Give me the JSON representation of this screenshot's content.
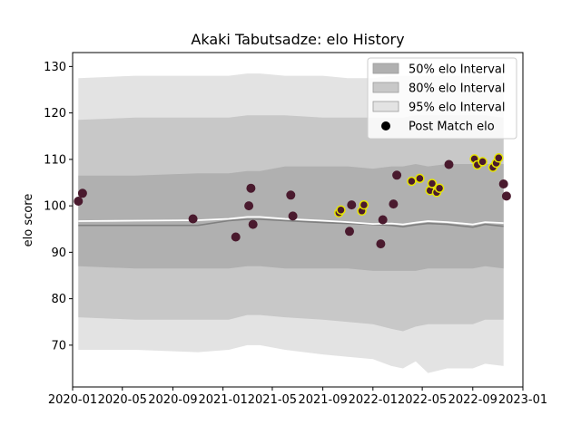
{
  "chart_data": {
    "type": "scatter",
    "title": "Akaki Tabutsadze: elo History",
    "xlabel": "",
    "ylabel": "elo score",
    "xlim": [
      "2020-01-01",
      "2023-01-01"
    ],
    "ylim": [
      61,
      133
    ],
    "x_ticks": [
      "2020-01",
      "2020-05",
      "2020-09",
      "2021-01",
      "2021-05",
      "2021-09",
      "2022-01",
      "2022-05",
      "2022-09",
      "2023-01"
    ],
    "y_ticks": [
      70,
      80,
      90,
      100,
      110,
      120,
      130
    ],
    "grid": false,
    "legend": {
      "placement": "top-right",
      "entries": [
        "50% elo Interval",
        "80% elo Interval",
        "95% elo Interval",
        "Post Match elo"
      ]
    },
    "colors": {
      "band50": "#b0b0b0",
      "band80": "#c8c8c8",
      "band95": "#e3e3e3",
      "mean_line": "#808080",
      "median_line": "#ffffff",
      "point_fill": "#4a1a2e",
      "point_highlight_edge": "#e6e600"
    },
    "bands": {
      "x": [
        "2020-01-15",
        "2020-06-01",
        "2020-11-01",
        "2021-01-15",
        "2021-03-01",
        "2021-04-01",
        "2021-06-01",
        "2021-09-01",
        "2021-11-01",
        "2022-01-01",
        "2022-02-15",
        "2022-03-15",
        "2022-04-15",
        "2022-05-15",
        "2022-07-01",
        "2022-09-01",
        "2022-10-01",
        "2022-11-15"
      ],
      "band95": {
        "low": [
          69,
          69,
          68.5,
          69,
          70,
          70,
          69,
          68,
          67.5,
          67,
          65.5,
          65,
          66.5,
          64,
          65,
          65,
          66,
          65.5
        ],
        "high": [
          127.5,
          128,
          128,
          128,
          128.5,
          128.5,
          128,
          128,
          127.5,
          127.5,
          128,
          128,
          128,
          128,
          128,
          128,
          128,
          128
        ]
      },
      "band80": {
        "low": [
          76,
          75.5,
          75.5,
          75.5,
          76.5,
          76.5,
          76,
          75.5,
          75,
          74.5,
          73.5,
          73,
          74,
          74.5,
          74.5,
          74.5,
          75.5,
          75.5
        ],
        "high": [
          118.5,
          119,
          119,
          119,
          119.5,
          119.5,
          119.5,
          119,
          119,
          119,
          119,
          119,
          119.5,
          119.5,
          119.5,
          119.5,
          119.5,
          119
        ]
      },
      "band50": {
        "low": [
          87,
          86.5,
          86.5,
          86.5,
          87,
          87,
          86.5,
          86.5,
          86.5,
          86,
          86,
          86,
          86,
          86.5,
          86.5,
          86.5,
          87,
          86.5
        ],
        "high": [
          106.5,
          106.5,
          107,
          107,
          107.5,
          107.5,
          108.5,
          108.5,
          108.5,
          108,
          108.5,
          108.5,
          109,
          108.5,
          109,
          109,
          109,
          109
        ]
      },
      "mean": [
        95.8,
        95.8,
        95.8,
        96.8,
        97.1,
        97.1,
        96.8,
        96.4,
        96.2,
        96.0,
        95.8,
        95.5,
        95.9,
        96.2,
        96.0,
        95.4,
        96.0,
        95.6
      ],
      "median": [
        96.7,
        96.8,
        96.9,
        97.2,
        97.6,
        97.6,
        97.2,
        96.8,
        96.5,
        96.1,
        96.2,
        96.0,
        96.4,
        96.7,
        96.5,
        96.0,
        96.5,
        96.3
      ]
    },
    "points": [
      {
        "x": "2020-01-15",
        "y": 101.0,
        "highlight": false
      },
      {
        "x": "2020-01-25",
        "y": 102.7,
        "highlight": false
      },
      {
        "x": "2020-10-20",
        "y": 97.2,
        "highlight": false
      },
      {
        "x": "2021-02-01",
        "y": 93.3,
        "highlight": false
      },
      {
        "x": "2021-03-05",
        "y": 100.0,
        "highlight": false
      },
      {
        "x": "2021-03-10",
        "y": 103.8,
        "highlight": false
      },
      {
        "x": "2021-03-15",
        "y": 96.0,
        "highlight": false
      },
      {
        "x": "2021-06-15",
        "y": 102.3,
        "highlight": false
      },
      {
        "x": "2021-06-20",
        "y": 97.8,
        "highlight": false
      },
      {
        "x": "2021-10-10",
        "y": 98.5,
        "highlight": true
      },
      {
        "x": "2021-10-15",
        "y": 99.1,
        "highlight": true
      },
      {
        "x": "2021-11-05",
        "y": 94.5,
        "highlight": false
      },
      {
        "x": "2021-11-10",
        "y": 100.2,
        "highlight": false
      },
      {
        "x": "2021-12-05",
        "y": 98.9,
        "highlight": true
      },
      {
        "x": "2021-12-10",
        "y": 100.2,
        "highlight": true
      },
      {
        "x": "2022-01-20",
        "y": 91.8,
        "highlight": false
      },
      {
        "x": "2022-01-25",
        "y": 97.0,
        "highlight": false
      },
      {
        "x": "2022-02-20",
        "y": 100.4,
        "highlight": false
      },
      {
        "x": "2022-02-28",
        "y": 106.6,
        "highlight": false
      },
      {
        "x": "2022-04-05",
        "y": 105.3,
        "highlight": true
      },
      {
        "x": "2022-04-25",
        "y": 105.9,
        "highlight": true
      },
      {
        "x": "2022-05-20",
        "y": 103.3,
        "highlight": true
      },
      {
        "x": "2022-05-25",
        "y": 104.8,
        "highlight": true
      },
      {
        "x": "2022-06-05",
        "y": 102.9,
        "highlight": true
      },
      {
        "x": "2022-06-12",
        "y": 103.8,
        "highlight": true
      },
      {
        "x": "2022-07-05",
        "y": 108.9,
        "highlight": false
      },
      {
        "x": "2022-09-05",
        "y": 110.1,
        "highlight": true
      },
      {
        "x": "2022-09-12",
        "y": 108.8,
        "highlight": true
      },
      {
        "x": "2022-09-25",
        "y": 109.5,
        "highlight": true
      },
      {
        "x": "2022-10-20",
        "y": 108.3,
        "highlight": true
      },
      {
        "x": "2022-10-28",
        "y": 109.2,
        "highlight": true
      },
      {
        "x": "2022-11-03",
        "y": 110.3,
        "highlight": true
      },
      {
        "x": "2022-11-15",
        "y": 104.7,
        "highlight": false
      },
      {
        "x": "2022-11-22",
        "y": 102.1,
        "highlight": false
      }
    ]
  }
}
